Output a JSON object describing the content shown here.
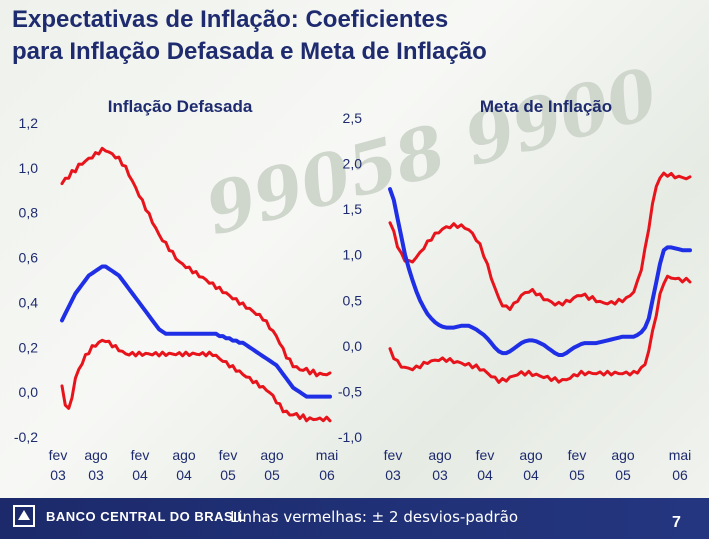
{
  "slide": {
    "title_line1": "Expectativas de Inflação: Coeficientes",
    "title_line2": "para Inflação Defasada e Meta de Inflação",
    "footnote": "Linhas vermelhas: ± 2 desvios-padrão",
    "page_number": "7",
    "logo_text": "BANCO CENTRAL DO BRASIL",
    "watermark_text": "99058 9900"
  },
  "colors": {
    "title": "#1e2b6e",
    "estimate": "#1f2fe6",
    "band": "#e8141c",
    "footer": "#1c2a6b"
  },
  "chart_data": [
    {
      "type": "line",
      "title": "Inflação Defasada",
      "y_ticks": [
        "1,2",
        "1,0",
        "0,8",
        "0,6",
        "0,4",
        "0,2",
        "0,0",
        "-0,2"
      ],
      "ylim": [
        -0.2,
        1.2
      ],
      "x_ticks": [
        {
          "label": "fev",
          "year": "03"
        },
        {
          "label": "ago",
          "year": "03"
        },
        {
          "label": "fev",
          "year": "04"
        },
        {
          "label": "ago",
          "year": "04"
        },
        {
          "label": "fev",
          "year": "05"
        },
        {
          "label": "ago",
          "year": "05"
        },
        {
          "label": "mai",
          "year": "06"
        }
      ],
      "x": [
        0,
        0.5,
        1,
        1.5,
        2,
        2.5,
        3,
        3.5,
        4,
        4.5,
        5,
        5.5,
        6,
        6.5,
        7,
        7.5,
        8,
        8.5,
        9,
        9.5,
        10,
        10.5,
        11,
        11.5,
        12,
        12.5,
        13,
        13.5,
        14,
        14.5,
        15,
        15.5,
        16,
        16.5,
        17,
        17.5,
        18,
        18.5,
        19,
        19.5,
        20,
        20.5,
        21,
        21.5,
        22,
        22.5,
        23,
        23.5,
        24,
        24.5,
        25,
        25.5,
        26,
        26.5,
        27,
        27.5,
        28,
        28.5,
        29,
        29.5,
        30,
        30.5,
        31,
        31.5,
        32,
        32.5,
        33,
        33.5,
        34,
        34.5,
        35,
        35.5,
        36,
        36.5,
        37,
        37.5,
        38,
        38.5,
        39,
        39.5,
        40
      ],
      "series": [
        {
          "name": "upper",
          "role": "band",
          "values": [
            0.93,
            0.95,
            0.96,
            0.98,
            0.99,
            1.01,
            1.02,
            1.03,
            1.04,
            1.05,
            1.06,
            1.07,
            1.08,
            1.08,
            1.07,
            1.06,
            1.05,
            1.04,
            1.02,
            1.0,
            0.97,
            0.94,
            0.91,
            0.88,
            0.85,
            0.82,
            0.79,
            0.76,
            0.73,
            0.7,
            0.68,
            0.66,
            0.64,
            0.62,
            0.6,
            0.58,
            0.57,
            0.56,
            0.55,
            0.54,
            0.53,
            0.52,
            0.51,
            0.5,
            0.49,
            0.48,
            0.47,
            0.46,
            0.45,
            0.44,
            0.43,
            0.42,
            0.41,
            0.4,
            0.39,
            0.38,
            0.37,
            0.36,
            0.35,
            0.34,
            0.33,
            0.31,
            0.29,
            0.27,
            0.25,
            0.22,
            0.19,
            0.16,
            0.14,
            0.12,
            0.11,
            0.1,
            0.1,
            0.1,
            0.09,
            0.09,
            0.08,
            0.08,
            0.08,
            0.08,
            0.08
          ]
        },
        {
          "name": "coeficiente",
          "role": "estimate",
          "values": [
            0.32,
            0.35,
            0.38,
            0.41,
            0.44,
            0.46,
            0.48,
            0.5,
            0.52,
            0.53,
            0.54,
            0.55,
            0.56,
            0.56,
            0.55,
            0.54,
            0.53,
            0.52,
            0.5,
            0.48,
            0.46,
            0.44,
            0.42,
            0.4,
            0.38,
            0.36,
            0.34,
            0.32,
            0.3,
            0.28,
            0.27,
            0.26,
            0.26,
            0.26,
            0.26,
            0.26,
            0.26,
            0.26,
            0.26,
            0.26,
            0.26,
            0.26,
            0.26,
            0.26,
            0.26,
            0.26,
            0.26,
            0.25,
            0.25,
            0.24,
            0.24,
            0.23,
            0.23,
            0.22,
            0.22,
            0.21,
            0.2,
            0.19,
            0.18,
            0.17,
            0.16,
            0.15,
            0.14,
            0.13,
            0.12,
            0.1,
            0.08,
            0.06,
            0.04,
            0.02,
            0.01,
            0.0,
            -0.01,
            -0.02,
            -0.02,
            -0.02,
            -0.02,
            -0.02,
            -0.02,
            -0.02,
            -0.02
          ]
        },
        {
          "name": "lower",
          "role": "band",
          "values": [
            0.02,
            -0.05,
            -0.08,
            -0.02,
            0.06,
            0.1,
            0.13,
            0.16,
            0.18,
            0.2,
            0.21,
            0.22,
            0.23,
            0.23,
            0.22,
            0.21,
            0.2,
            0.19,
            0.18,
            0.17,
            0.17,
            0.17,
            0.17,
            0.17,
            0.17,
            0.17,
            0.17,
            0.17,
            0.17,
            0.17,
            0.17,
            0.17,
            0.17,
            0.17,
            0.17,
            0.17,
            0.17,
            0.17,
            0.17,
            0.17,
            0.17,
            0.17,
            0.17,
            0.17,
            0.17,
            0.17,
            0.16,
            0.15,
            0.14,
            0.13,
            0.12,
            0.11,
            0.1,
            0.09,
            0.08,
            0.07,
            0.06,
            0.05,
            0.04,
            0.03,
            0.02,
            0.01,
            0.0,
            -0.02,
            -0.04,
            -0.06,
            -0.08,
            -0.09,
            -0.1,
            -0.1,
            -0.1,
            -0.11,
            -0.11,
            -0.12,
            -0.12,
            -0.12,
            -0.12,
            -0.12,
            -0.12,
            -0.12,
            -0.12
          ]
        }
      ]
    },
    {
      "type": "line",
      "title": "Meta de Inflação",
      "y_ticks": [
        "2,5",
        "2,0",
        "1,5",
        "1,0",
        "0,5",
        "0,0",
        "-0,5",
        "-1,0"
      ],
      "ylim": [
        -1.0,
        2.5
      ],
      "x_ticks": [
        {
          "label": "fev",
          "year": "03"
        },
        {
          "label": "ago",
          "year": "03"
        },
        {
          "label": "fev",
          "year": "04"
        },
        {
          "label": "ago",
          "year": "04"
        },
        {
          "label": "fev",
          "year": "05"
        },
        {
          "label": "ago",
          "year": "05"
        },
        {
          "label": "mai",
          "year": "06"
        }
      ],
      "x": [
        0,
        0.5,
        1,
        1.5,
        2,
        2.5,
        3,
        3.5,
        4,
        4.5,
        5,
        5.5,
        6,
        6.5,
        7,
        7.5,
        8,
        8.5,
        9,
        9.5,
        10,
        10.5,
        11,
        11.5,
        12,
        12.5,
        13,
        13.5,
        14,
        14.5,
        15,
        15.5,
        16,
        16.5,
        17,
        17.5,
        18,
        18.5,
        19,
        19.5,
        20,
        20.5,
        21,
        21.5,
        22,
        22.5,
        23,
        23.5,
        24,
        24.5,
        25,
        25.5,
        26,
        26.5,
        27,
        27.5,
        28,
        28.5,
        29,
        29.5,
        30,
        30.5,
        31,
        31.5,
        32,
        32.5,
        33,
        33.5,
        34,
        34.5,
        35,
        35.5,
        36,
        36.5,
        37,
        37.5,
        38,
        38.5,
        39,
        39.5,
        40
      ],
      "series": [
        {
          "name": "upper",
          "role": "band",
          "values": [
            1.35,
            1.25,
            1.1,
            1.0,
            0.95,
            0.92,
            0.93,
            0.97,
            1.02,
            1.08,
            1.13,
            1.18,
            1.22,
            1.25,
            1.28,
            1.3,
            1.31,
            1.32,
            1.32,
            1.31,
            1.3,
            1.27,
            1.23,
            1.17,
            1.1,
            1.0,
            0.88,
            0.75,
            0.63,
            0.52,
            0.45,
            0.42,
            0.42,
            0.45,
            0.5,
            0.55,
            0.58,
            0.6,
            0.6,
            0.58,
            0.55,
            0.52,
            0.5,
            0.48,
            0.46,
            0.46,
            0.47,
            0.48,
            0.5,
            0.52,
            0.55,
            0.56,
            0.55,
            0.53,
            0.52,
            0.5,
            0.48,
            0.47,
            0.47,
            0.47,
            0.48,
            0.49,
            0.5,
            0.52,
            0.55,
            0.6,
            0.7,
            0.85,
            1.05,
            1.3,
            1.55,
            1.75,
            1.85,
            1.88,
            1.88,
            1.87,
            1.86,
            1.85,
            1.85,
            1.84,
            1.84
          ]
        },
        {
          "name": "coeficiente",
          "role": "estimate",
          "values": [
            1.72,
            1.6,
            1.4,
            1.2,
            1.0,
            0.85,
            0.72,
            0.6,
            0.5,
            0.42,
            0.35,
            0.3,
            0.26,
            0.23,
            0.21,
            0.2,
            0.2,
            0.2,
            0.21,
            0.22,
            0.22,
            0.22,
            0.2,
            0.18,
            0.15,
            0.12,
            0.08,
            0.03,
            -0.02,
            -0.06,
            -0.08,
            -0.08,
            -0.06,
            -0.03,
            0.0,
            0.03,
            0.05,
            0.06,
            0.06,
            0.05,
            0.03,
            0.01,
            -0.02,
            -0.05,
            -0.08,
            -0.1,
            -0.1,
            -0.08,
            -0.05,
            -0.02,
            0.0,
            0.02,
            0.03,
            0.03,
            0.03,
            0.03,
            0.04,
            0.05,
            0.06,
            0.07,
            0.08,
            0.09,
            0.1,
            0.1,
            0.1,
            0.1,
            0.12,
            0.15,
            0.2,
            0.3,
            0.5,
            0.7,
            0.9,
            1.05,
            1.08,
            1.08,
            1.07,
            1.06,
            1.05,
            1.05,
            1.05
          ]
        },
        {
          "name": "lower",
          "role": "band",
          "values": [
            -0.05,
            -0.12,
            -0.18,
            -0.22,
            -0.24,
            -0.25,
            -0.25,
            -0.24,
            -0.22,
            -0.2,
            -0.18,
            -0.17,
            -0.16,
            -0.15,
            -0.15,
            -0.15,
            -0.16,
            -0.17,
            -0.18,
            -0.19,
            -0.2,
            -0.21,
            -0.22,
            -0.23,
            -0.25,
            -0.27,
            -0.3,
            -0.33,
            -0.36,
            -0.38,
            -0.38,
            -0.37,
            -0.35,
            -0.33,
            -0.31,
            -0.3,
            -0.3,
            -0.3,
            -0.31,
            -0.32,
            -0.33,
            -0.34,
            -0.35,
            -0.36,
            -0.37,
            -0.38,
            -0.38,
            -0.37,
            -0.35,
            -0.33,
            -0.31,
            -0.3,
            -0.3,
            -0.3,
            -0.3,
            -0.3,
            -0.3,
            -0.3,
            -0.3,
            -0.3,
            -0.3,
            -0.3,
            -0.3,
            -0.3,
            -0.3,
            -0.3,
            -0.28,
            -0.25,
            -0.2,
            -0.05,
            0.15,
            0.35,
            0.55,
            0.7,
            0.75,
            0.75,
            0.74,
            0.73,
            0.72,
            0.72,
            0.72
          ]
        }
      ]
    }
  ]
}
